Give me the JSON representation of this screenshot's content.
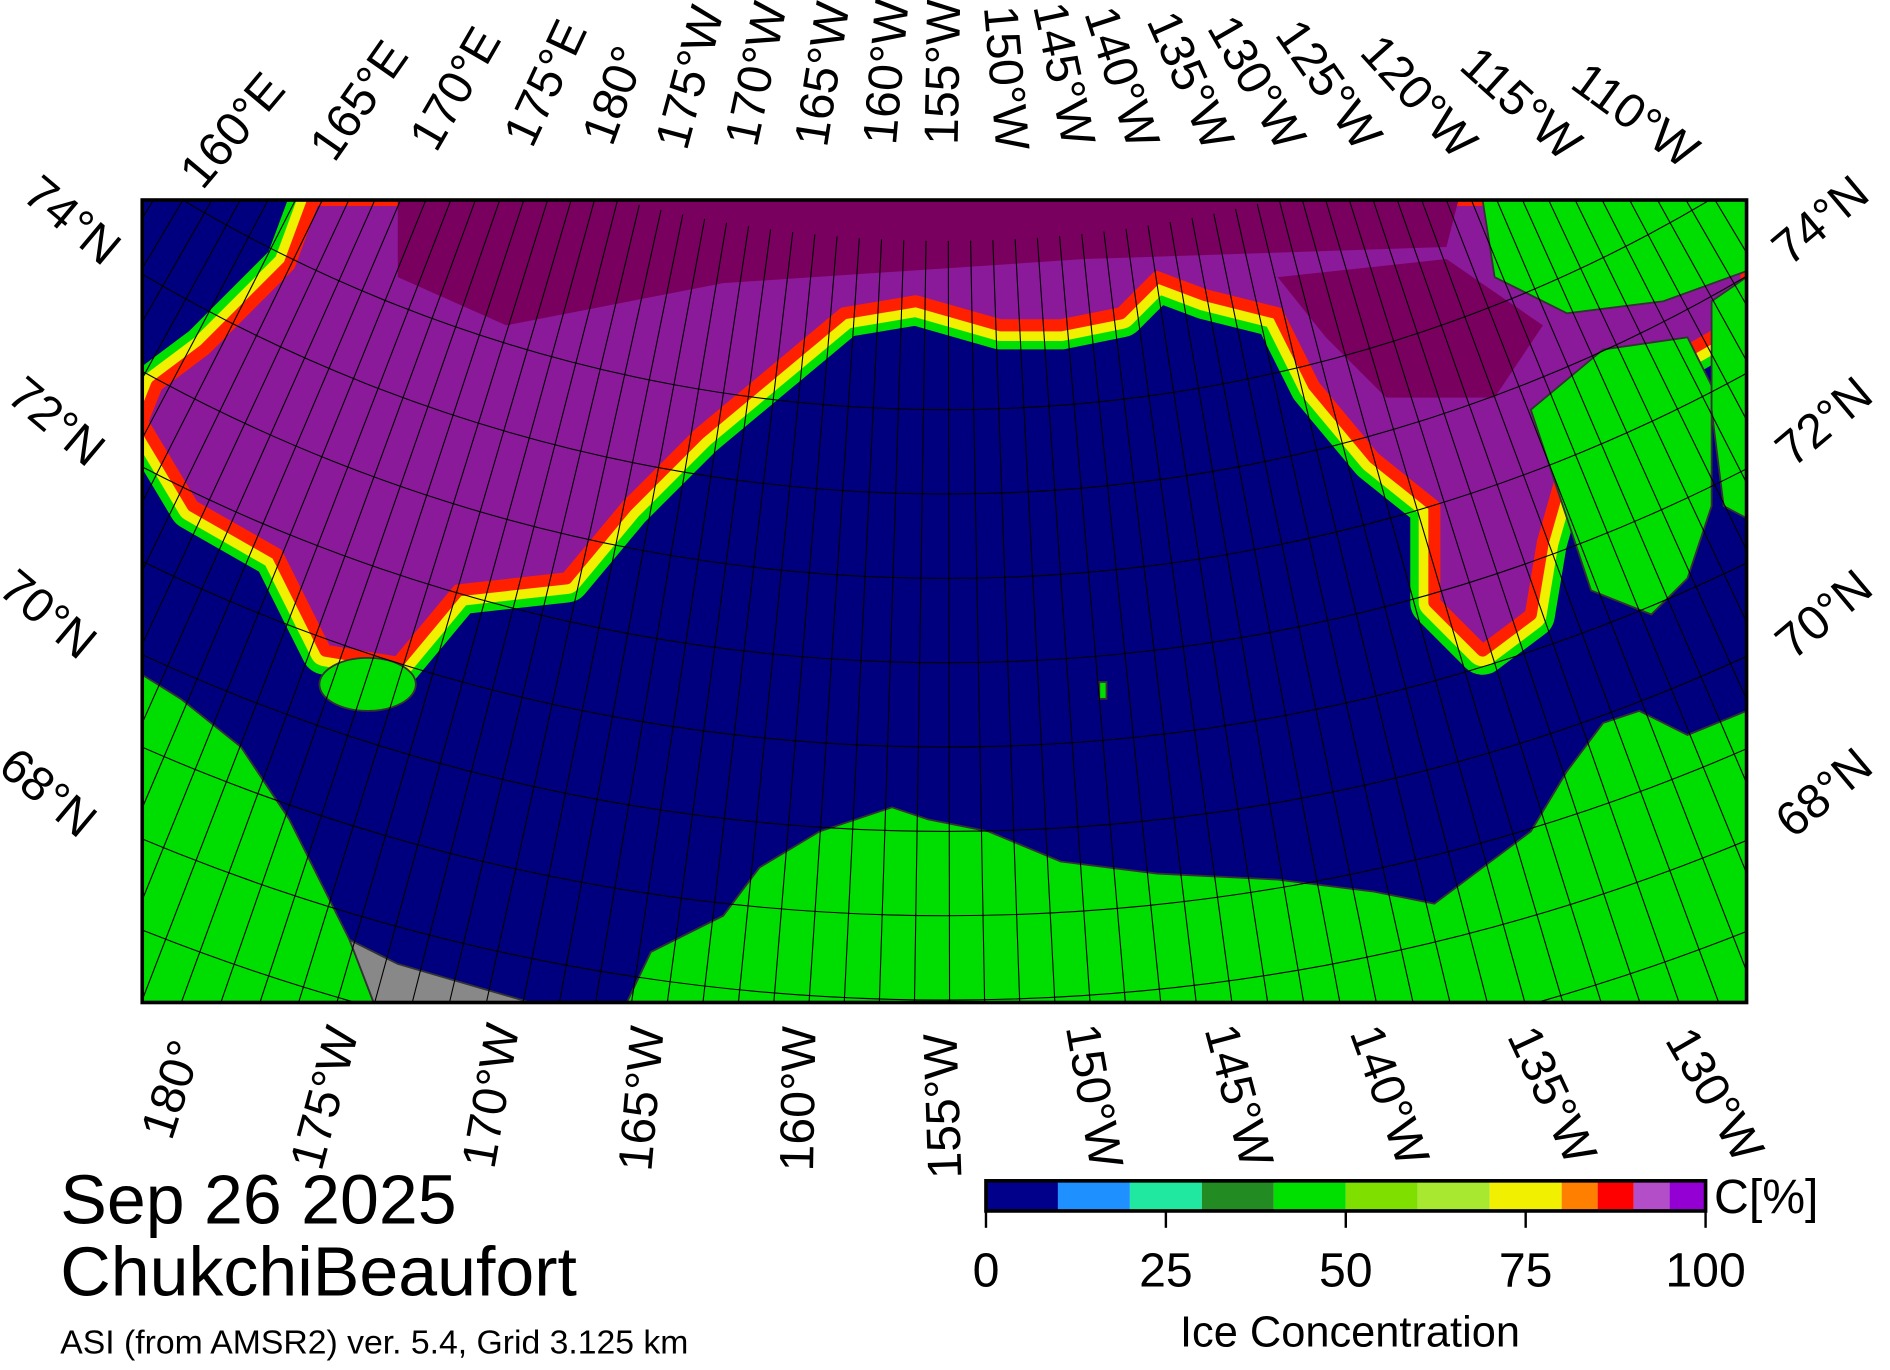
{
  "title": "Sep 26 2025",
  "region": "ChukchiBeaufort",
  "source": "ASI (from AMSR2) ver. 5.4,  Grid 3.125 km",
  "top_lon_labels": [
    "160°E",
    "165°E",
    "170°E",
    "175°E",
    "180°",
    "175°W",
    "170°W",
    "165°W",
    "160°W",
    "155°W",
    "150°W",
    "145°W",
    "140°W",
    "135°W",
    "130°W",
    "125°W",
    "120°W",
    "115°W",
    "110°W"
  ],
  "left_lat_labels": [
    "74°N",
    "72°N",
    "70°N",
    "68°N"
  ],
  "right_lat_labels": [
    "74°N",
    "72°N",
    "70°N",
    "68°N"
  ],
  "bottom_lon_labels": [
    "180°",
    "175°W",
    "170°W",
    "165°W",
    "160°W",
    "155°W",
    "150°W",
    "145°W",
    "140°W",
    "135°W",
    "130°W"
  ],
  "colorbar": {
    "label": "Ice Concentration",
    "unit": "C[%]",
    "bins": [
      0,
      10,
      20,
      30,
      40,
      50,
      60,
      70,
      80,
      85,
      90,
      95,
      100
    ],
    "colors": [
      "#00008b",
      "#1e90ff",
      "#20e8a0",
      "#228b22",
      "#00e000",
      "#7fe000",
      "#a8e830",
      "#f0f000",
      "#ff7f00",
      "#ff0000",
      "#b44ec8",
      "#9400d3"
    ],
    "ticks": [
      0,
      25,
      50,
      75,
      100
    ]
  }
}
